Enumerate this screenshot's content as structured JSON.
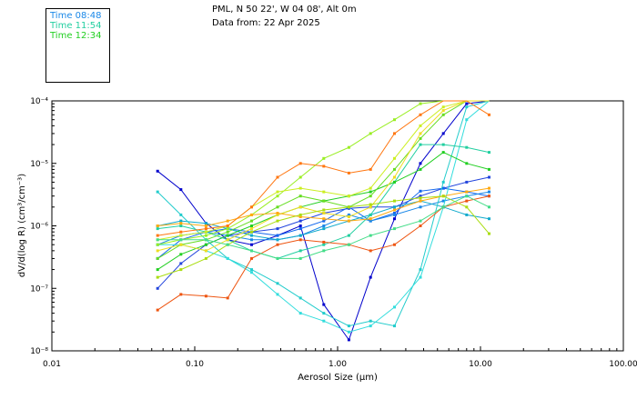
{
  "header": {
    "location": "PML, N 50 22', W 04 08', Alt 0m",
    "date": "Data from: 22 Apr 2025"
  },
  "legend": [
    {
      "label": "Time 08:48",
      "color": "#1a88e8"
    },
    {
      "label": "Time 11:54",
      "color": "#22cfa0"
    },
    {
      "label": "Time 12:34",
      "color": "#22cf22"
    }
  ],
  "chart_data": {
    "type": "line",
    "xscale": "log",
    "yscale": "log",
    "xlim": [
      0.01,
      100
    ],
    "ylim": [
      1e-08,
      0.0001
    ],
    "xlabel": "Aerosol Size (μm)",
    "ylabel": "dV/d(log R) (cm³/cm⁻³)",
    "x_ticks": [
      "0.01",
      "0.10",
      "1.00",
      "10.00",
      "100.00"
    ],
    "y_ticks": [
      "10⁻⁸",
      "10⁻⁷",
      "10⁻⁶",
      "10⁻⁵",
      "10⁻⁴"
    ],
    "x": [
      0.055,
      0.08,
      0.12,
      0.17,
      0.25,
      0.38,
      0.55,
      0.8,
      1.2,
      1.7,
      2.5,
      3.8,
      5.5,
      8.0,
      11.5
    ],
    "series": [
      {
        "color": "#0000cc",
        "values": [
          7.5e-06,
          3.8e-06,
          1.1e-06,
          6e-07,
          5e-07,
          7e-07,
          1e-06,
          5.5e-08,
          1.5e-08,
          1.5e-07,
          1.3e-06,
          1e-05,
          3e-05,
          9e-05,
          0.0001
        ]
      },
      {
        "color": "#2244dd",
        "values": [
          1e-07,
          2.5e-07,
          5e-07,
          7e-07,
          8e-07,
          9e-07,
          1.2e-06,
          1.6e-06,
          1.9e-06,
          2e-06,
          2e-06,
          3e-06,
          4e-06,
          5e-06,
          6e-06
        ]
      },
      {
        "color": "#1166ee",
        "values": [
          3e-07,
          6e-07,
          8e-07,
          9e-07,
          8e-07,
          7e-07,
          9e-07,
          1.2e-06,
          2e-06,
          1.2e-06,
          1.6e-06,
          3.6e-06,
          4e-06,
          3.5e-06,
          3e-06
        ]
      },
      {
        "color": "#1a88e8",
        "values": [
          5e-07,
          7e-07,
          8e-07,
          7e-07,
          6e-07,
          6e-07,
          7e-07,
          1e-06,
          1.5e-06,
          1.2e-06,
          1.5e-06,
          2e-06,
          2.5e-06,
          3e-06,
          3.5e-06
        ]
      },
      {
        "color": "#11aacc",
        "values": [
          1e-06,
          1.2e-06,
          1.1e-06,
          9e-07,
          7e-07,
          6e-07,
          7e-07,
          9e-07,
          1.2e-06,
          1.5e-06,
          2e-06,
          2.5e-06,
          2e-06,
          1.5e-06,
          1.3e-06
        ]
      },
      {
        "color": "#22cccc",
        "values": [
          3.5e-06,
          1.5e-06,
          6e-07,
          3e-07,
          2e-07,
          1.2e-07,
          7e-08,
          4e-08,
          2.5e-08,
          3e-08,
          2.5e-08,
          2e-07,
          5e-06,
          8e-05,
          0.0001
        ]
      },
      {
        "color": "#33dddd",
        "values": [
          5e-07,
          5e-07,
          4e-07,
          3e-07,
          1.8e-07,
          8e-08,
          4e-08,
          3e-08,
          2e-08,
          2.5e-08,
          5e-08,
          1.5e-07,
          2e-06,
          5e-05,
          0.0001
        ]
      },
      {
        "color": "#22cfa0",
        "values": [
          9e-07,
          1e-06,
          8e-07,
          6e-07,
          4e-07,
          3e-07,
          4e-07,
          5e-07,
          7e-07,
          1.5e-06,
          5e-06,
          2e-05,
          2e-05,
          1.8e-05,
          1.5e-05
        ]
      },
      {
        "color": "#22cf22",
        "values": [
          2e-07,
          3.5e-07,
          5e-07,
          7e-07,
          1e-06,
          1.5e-06,
          2e-06,
          2.5e-06,
          3e-06,
          3.5e-06,
          5e-06,
          8e-06,
          1.5e-05,
          1e-05,
          8e-06
        ]
      },
      {
        "color": "#66dd22",
        "values": [
          3e-07,
          5e-07,
          6e-07,
          8e-07,
          1.2e-06,
          2e-06,
          3e-06,
          2.5e-06,
          2e-06,
          3e-06,
          8e-06,
          2.5e-05,
          6e-05,
          0.0001,
          0.0001
        ]
      },
      {
        "color": "#99ee22",
        "values": [
          5e-07,
          6e-07,
          7e-07,
          9e-07,
          1.5e-06,
          3e-06,
          6e-06,
          1.2e-05,
          1.8e-05,
          3e-05,
          5e-05,
          9e-05,
          0.0001,
          0.0001,
          0.0001
        ]
      },
      {
        "color": "#ccee22",
        "values": [
          6e-07,
          7e-07,
          8e-07,
          1e-06,
          2e-06,
          3.5e-06,
          4e-06,
          3.5e-06,
          3e-06,
          4e-06,
          1.2e-05,
          4e-05,
          8e-05,
          0.0001,
          0.0001
        ]
      },
      {
        "color": "#eedd22",
        "values": [
          4e-07,
          5e-07,
          4e-07,
          6e-07,
          9e-07,
          1.5e-06,
          2e-06,
          1.6e-06,
          1.4e-06,
          2e-06,
          6e-06,
          3e-05,
          7e-05,
          0.0001,
          0.0001
        ]
      },
      {
        "color": "#ffaa11",
        "values": [
          1e-06,
          1.1e-06,
          1e-06,
          1.2e-06,
          1.5e-06,
          1.6e-06,
          1.4e-06,
          1.3e-06,
          1.2e-06,
          1.3e-06,
          1.8e-06,
          2.5e-06,
          3e-06,
          3.5e-06,
          4e-06
        ]
      },
      {
        "color": "#ff7711",
        "values": [
          7e-07,
          8e-07,
          9e-07,
          1e-06,
          2e-06,
          6e-06,
          1e-05,
          9e-06,
          7e-06,
          8e-06,
          3e-05,
          6e-05,
          0.0001,
          0.0001,
          6e-05
        ]
      },
      {
        "color": "#ee5511",
        "values": [
          4.5e-08,
          8e-08,
          7.5e-08,
          7e-08,
          3e-07,
          5e-07,
          6e-07,
          5.5e-07,
          5e-07,
          4e-07,
          5e-07,
          1e-06,
          2e-06,
          2.5e-06,
          3e-06
        ]
      },
      {
        "color": "#aadd11",
        "values": [
          1.5e-07,
          2e-07,
          3e-07,
          5e-07,
          8e-07,
          1.2e-06,
          1.5e-06,
          1.8e-06,
          2e-06,
          2.2e-06,
          2.5e-06,
          2.8e-06,
          3e-06,
          2e-06,
          7.5e-07
        ]
      },
      {
        "color": "#44dd88",
        "values": [
          6e-07,
          6e-07,
          6e-07,
          5e-07,
          4e-07,
          3e-07,
          3e-07,
          4e-07,
          5e-07,
          7e-07,
          9e-07,
          1.2e-06,
          2e-06,
          3e-06,
          2e-06
        ]
      }
    ]
  }
}
